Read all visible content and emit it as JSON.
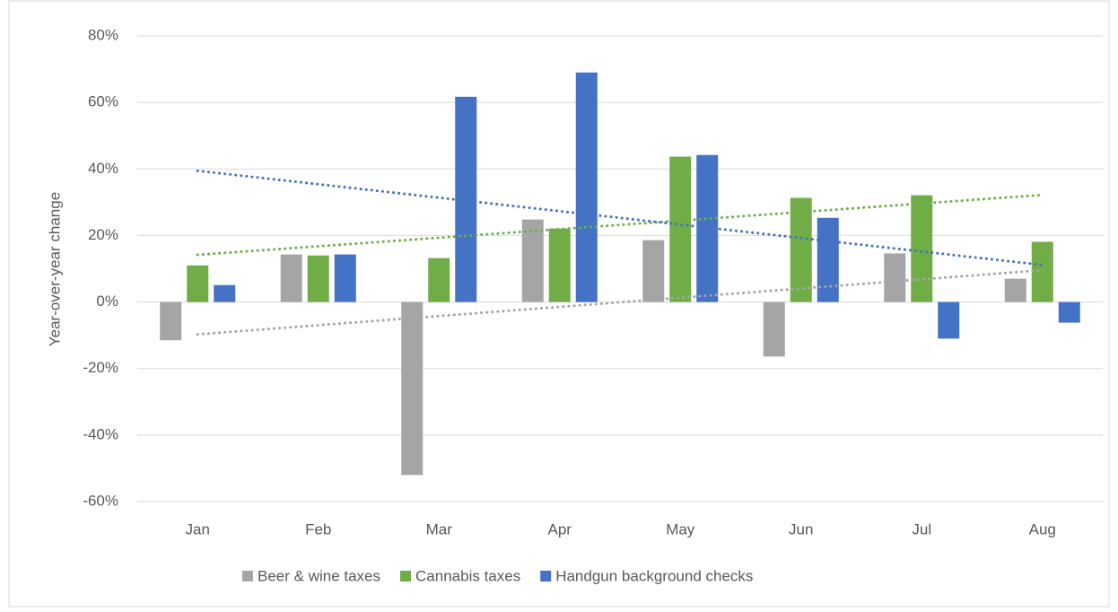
{
  "chart_data": {
    "type": "bar",
    "y_label": "Year-over-year change",
    "categories": [
      "Jan",
      "Feb",
      "Mar",
      "Apr",
      "May",
      "Jun",
      "Jul",
      "Aug"
    ],
    "series": [
      {
        "name": "Beer & wine taxes",
        "color": "#a5a5a5",
        "values": [
          -11.5,
          14.3,
          -52,
          24.8,
          18.6,
          -16.4,
          14.6,
          7
        ]
      },
      {
        "name": "Cannabis taxes",
        "color": "#70ad47",
        "values": [
          11,
          14,
          13.2,
          22.1,
          43.7,
          31.3,
          32.1,
          18.1
        ]
      },
      {
        "name": "Handgun background checks",
        "color": "#4472c4",
        "values": [
          5.1,
          14.3,
          61.7,
          69,
          44.2,
          25.3,
          -11,
          -6.2
        ]
      }
    ],
    "ylim": [
      -60,
      80
    ],
    "yticks": [
      {
        "value": -60,
        "label": "-60%"
      },
      {
        "value": -40,
        "label": "-40%"
      },
      {
        "value": -20,
        "label": "-20%"
      },
      {
        "value": 0,
        "label": "0%"
      },
      {
        "value": 20,
        "label": "20%"
      },
      {
        "value": 40,
        "label": "40%"
      },
      {
        "value": 60,
        "label": "60%"
      },
      {
        "value": 80,
        "label": "80%"
      }
    ],
    "grid": true,
    "trendline": true,
    "legend": "bottom"
  }
}
